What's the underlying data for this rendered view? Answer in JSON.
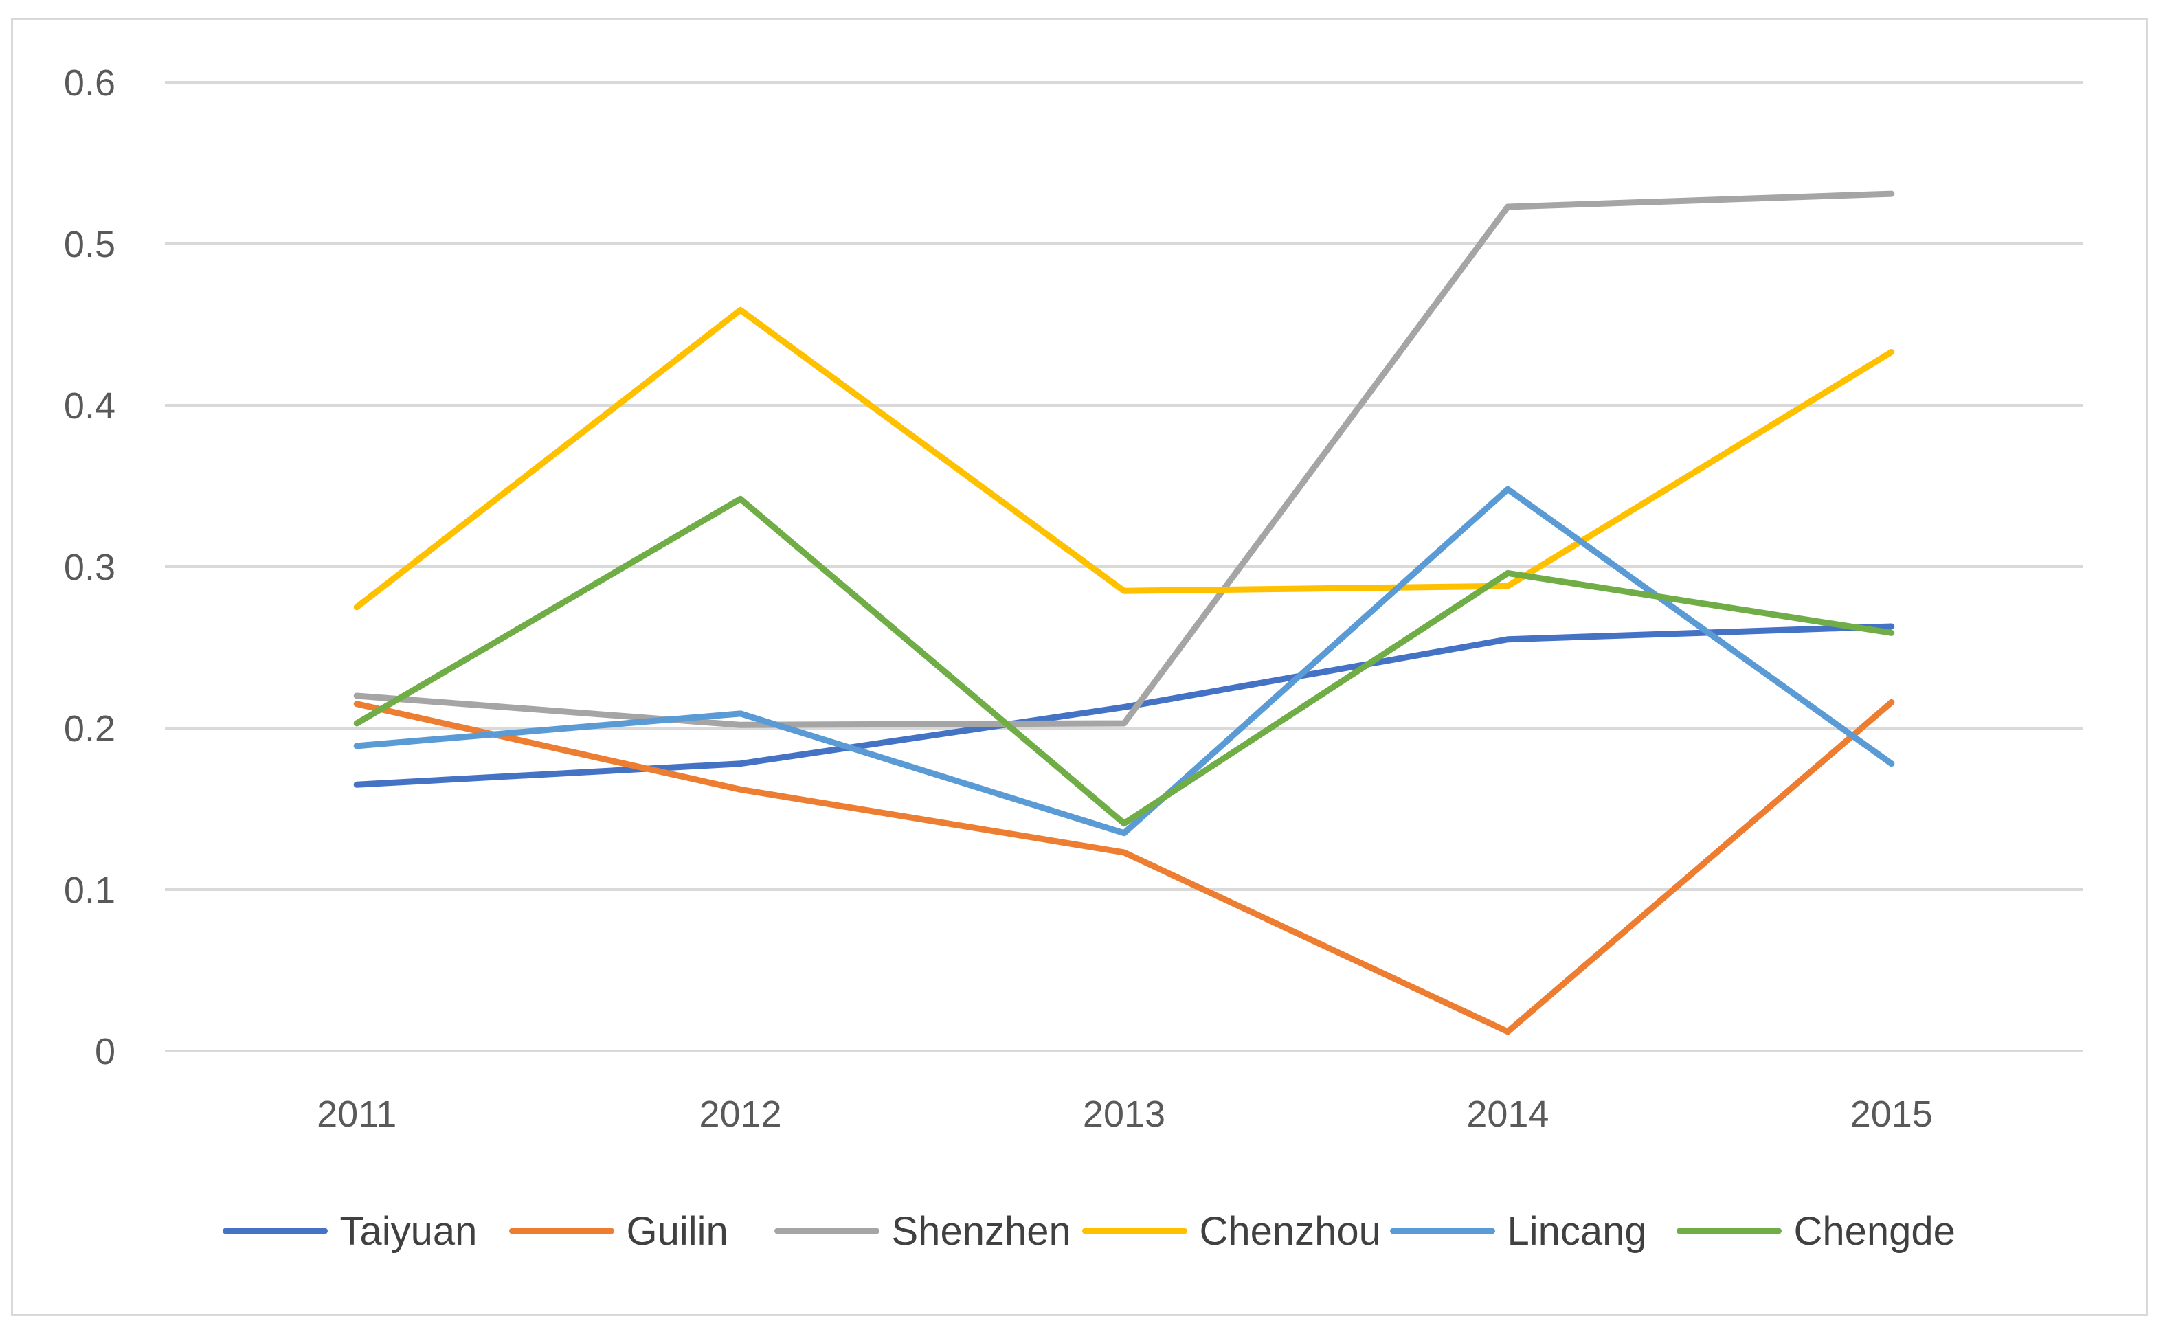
{
  "chart_data": {
    "type": "line",
    "title": "",
    "xlabel": "",
    "ylabel": "",
    "categories": [
      "2011",
      "2012",
      "2013",
      "2014",
      "2015"
    ],
    "ylim": [
      0,
      0.6
    ],
    "yticks": [
      "0",
      "0.1",
      "0.2",
      "0.3",
      "0.4",
      "0.5",
      "0.6"
    ],
    "grid": "horizontal",
    "legend_position": "bottom",
    "series": [
      {
        "name": "Taiyuan",
        "color": "#4472C4",
        "values": [
          0.165,
          0.178,
          0.213,
          0.255,
          0.263
        ]
      },
      {
        "name": "Guilin",
        "color": "#ED7D31",
        "values": [
          0.215,
          0.162,
          0.123,
          0.012,
          0.216
        ]
      },
      {
        "name": "Shenzhen",
        "color": "#A5A5A5",
        "values": [
          0.22,
          0.202,
          0.203,
          0.523,
          0.531
        ]
      },
      {
        "name": "Chenzhou",
        "color": "#FFC000",
        "values": [
          0.275,
          0.459,
          0.285,
          0.288,
          0.433
        ]
      },
      {
        "name": "Lincang",
        "color": "#5B9BD5",
        "values": [
          0.189,
          0.209,
          0.135,
          0.348,
          0.178
        ]
      },
      {
        "name": "Chengde",
        "color": "#70AD47",
        "values": [
          0.203,
          0.342,
          0.141,
          0.296,
          0.259
        ]
      }
    ]
  }
}
